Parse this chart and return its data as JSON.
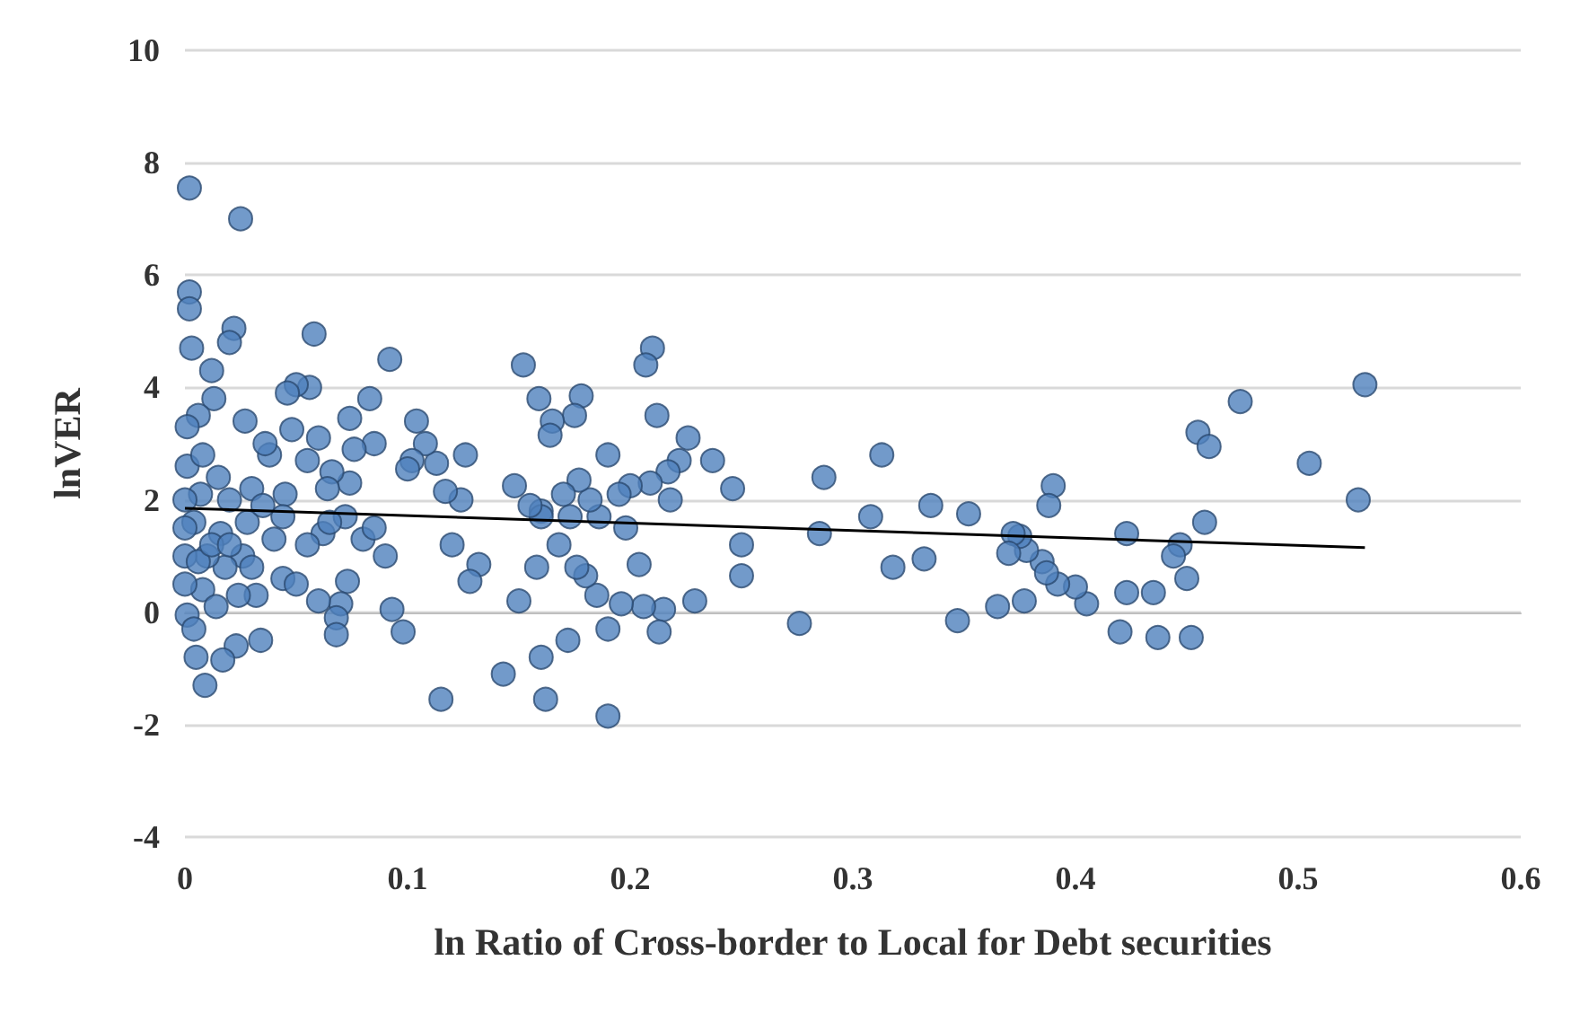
{
  "chart_data": {
    "type": "scatter",
    "xlabel": "ln Ratio of Cross-border to Local for Debt securities",
    "ylabel": "lnVER",
    "xlim": [
      0,
      0.6
    ],
    "xticks": [
      0,
      0.1,
      0.2,
      0.3,
      0.4,
      0.5,
      0.6
    ],
    "ylim": [
      -4,
      10
    ],
    "yticks": [
      -4,
      -2,
      0,
      2,
      4,
      6,
      8,
      10
    ],
    "grid": "y",
    "marker": "circle",
    "series": [
      {
        "color": "#4f81bd",
        "x": [
          0.53,
          0.527,
          0.505,
          0.474,
          0.455,
          0.46,
          0.458,
          0.45,
          0.452,
          0.437,
          0.447,
          0.444,
          0.435,
          0.423,
          0.42,
          0.423,
          0.405,
          0.4,
          0.392,
          0.39,
          0.388,
          0.385,
          0.387,
          0.378,
          0.375,
          0.372,
          0.37,
          0.377,
          0.365,
          0.352,
          0.347,
          0.335,
          0.332,
          0.318,
          0.313,
          0.308,
          0.287,
          0.285,
          0.276,
          0.25,
          0.25,
          0.246,
          0.237,
          0.226,
          0.222,
          0.229,
          0.217,
          0.218,
          0.212,
          0.21,
          0.207,
          0.209,
          0.215,
          0.213,
          0.206,
          0.204,
          0.198,
          0.2,
          0.195,
          0.196,
          0.19,
          0.19,
          0.19,
          0.186,
          0.185,
          0.182,
          0.178,
          0.177,
          0.18,
          0.176,
          0.175,
          0.173,
          0.17,
          0.168,
          0.172,
          0.165,
          0.164,
          0.16,
          0.16,
          0.159,
          0.155,
          0.152,
          0.16,
          0.162,
          0.158,
          0.148,
          0.143,
          0.15,
          0.132,
          0.128,
          0.124,
          0.126,
          0.12,
          0.117,
          0.113,
          0.115,
          0.108,
          0.104,
          0.102,
          0.1,
          0.098,
          0.092,
          0.093,
          0.085,
          0.083,
          0.08,
          0.076,
          0.074,
          0.074,
          0.072,
          0.073,
          0.07,
          0.068,
          0.068,
          0.066,
          0.064,
          0.062,
          0.06,
          0.058,
          0.056,
          0.055,
          0.05,
          0.048,
          0.046,
          0.045,
          0.044,
          0.044,
          0.04,
          0.038,
          0.036,
          0.034,
          0.032,
          0.03,
          0.028,
          0.027,
          0.026,
          0.025,
          0.023,
          0.022,
          0.02,
          0.02,
          0.018,
          0.017,
          0.016,
          0.015,
          0.013,
          0.012,
          0.01,
          0.009,
          0.008,
          0.007,
          0.006,
          0.005,
          0.004,
          0.003,
          0.002,
          0.002,
          0.002,
          0.001,
          0.001,
          0.0,
          0.0,
          0.0,
          0.0,
          0.001,
          0.004,
          0.006,
          0.008,
          0.012,
          0.014,
          0.02,
          0.024,
          0.03,
          0.035,
          0.05,
          0.055,
          0.06,
          0.065,
          0.085,
          0.09
        ],
        "values": [
          4.05,
          2.0,
          2.65,
          3.75,
          3.2,
          2.95,
          1.6,
          0.6,
          -0.45,
          -0.45,
          1.2,
          1.0,
          0.35,
          1.4,
          -0.35,
          0.35,
          0.15,
          0.45,
          0.5,
          2.25,
          1.9,
          0.9,
          0.7,
          1.1,
          1.35,
          1.4,
          1.05,
          0.2,
          0.1,
          1.75,
          -0.15,
          1.9,
          0.95,
          0.8,
          2.8,
          1.7,
          2.4,
          1.4,
          -0.2,
          1.2,
          0.65,
          2.2,
          2.7,
          3.1,
          2.7,
          0.2,
          2.5,
          2.0,
          3.5,
          4.7,
          4.4,
          2.3,
          0.05,
          -0.35,
          0.1,
          0.85,
          1.5,
          2.25,
          2.1,
          0.15,
          2.8,
          -0.3,
          -1.85,
          1.7,
          0.3,
          2.0,
          3.85,
          2.35,
          0.65,
          0.8,
          3.5,
          1.7,
          2.1,
          1.2,
          -0.5,
          3.4,
          3.15,
          1.8,
          1.7,
          3.8,
          1.9,
          4.4,
          -0.8,
          -1.55,
          0.8,
          2.25,
          -1.1,
          0.2,
          0.85,
          0.55,
          2.0,
          2.8,
          1.2,
          2.15,
          2.65,
          -1.55,
          3.0,
          3.4,
          2.7,
          2.55,
          -0.35,
          4.5,
          0.05,
          3.0,
          3.8,
          1.3,
          2.9,
          2.3,
          3.45,
          1.7,
          0.55,
          0.15,
          -0.1,
          -0.4,
          2.5,
          2.2,
          1.4,
          3.1,
          4.95,
          4.0,
          2.7,
          4.05,
          3.25,
          3.9,
          2.1,
          1.7,
          0.6,
          1.3,
          2.8,
          3.0,
          -0.5,
          0.3,
          2.2,
          1.6,
          3.4,
          1.0,
          7.0,
          -0.6,
          5.05,
          4.8,
          2.0,
          0.8,
          -0.85,
          1.4,
          2.4,
          3.8,
          4.3,
          1.0,
          -1.3,
          0.4,
          2.1,
          3.5,
          -0.8,
          1.6,
          4.7,
          7.55,
          5.7,
          5.4,
          3.3,
          2.6,
          2.0,
          1.5,
          1.0,
          0.5,
          -0.05,
          -0.3,
          0.9,
          2.8,
          1.2,
          0.1,
          1.2,
          0.3,
          0.8,
          1.9,
          0.5,
          1.2,
          0.2,
          1.6,
          1.5,
          1.0
        ]
      },
      {
        "type": "line",
        "color": "#000000",
        "marker": "none",
        "x": [
          0,
          0.53
        ],
        "values": [
          1.85,
          1.15
        ]
      }
    ]
  }
}
